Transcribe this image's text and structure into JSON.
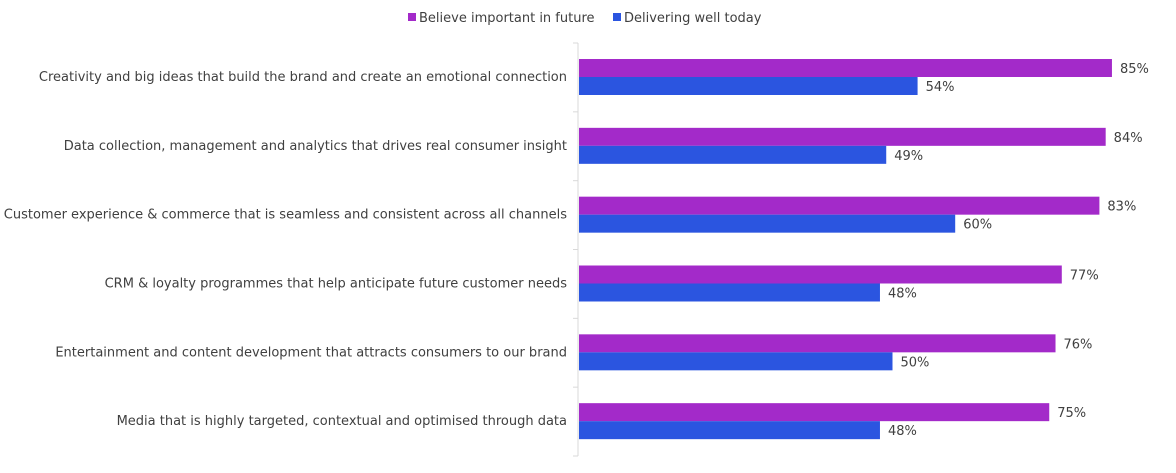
{
  "chart_data": {
    "type": "bar",
    "orientation": "horizontal",
    "categories": [
      "Creativity and big ideas that build the brand and create an emotional connection",
      "Data collection, management and analytics that drives real consumer insight",
      "Customer experience & commerce that is seamless and consistent across all channels",
      "CRM & loyalty programmes that help anticipate future customer needs",
      "Entertainment and content development that attracts consumers to our brand",
      "Media that is highly targeted, contextual and optimised through data"
    ],
    "series": [
      {
        "name": "Believe important in future",
        "color": "#a32ac9",
        "values": [
          85,
          84,
          83,
          77,
          76,
          75
        ]
      },
      {
        "name": "Delivering well today",
        "color": "#2b55e0",
        "values": [
          54,
          49,
          60,
          48,
          50,
          48
        ]
      }
    ],
    "value_suffix": "%",
    "xlim": [
      0,
      100
    ],
    "legend_position": "top-center",
    "grid": false
  }
}
